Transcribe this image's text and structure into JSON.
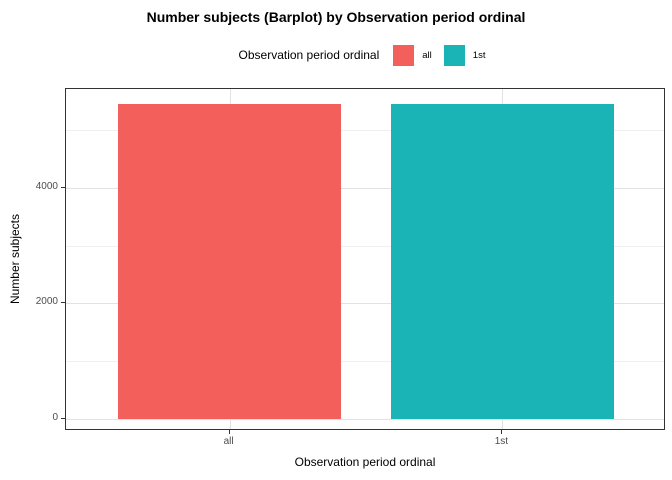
{
  "chart_data": {
    "type": "bar",
    "title": "Number subjects (Barplot) by Observation period ordinal",
    "legend_title": "Observation period ordinal",
    "legend_position": "top",
    "xlabel": "Observation period ordinal",
    "ylabel": "Number subjects",
    "categories": [
      "all",
      "1st"
    ],
    "values": [
      5460,
      5460
    ],
    "bar_colors": [
      "#F3605C",
      "#1AB4B7"
    ],
    "legend": [
      {
        "label": "all",
        "color": "#F3605C"
      },
      {
        "label": "1st",
        "color": "#1AB4B7"
      }
    ],
    "yticks": [
      0,
      2000,
      4000
    ],
    "y_minor_ticks": [
      1000,
      3000,
      5000
    ],
    "ylim": [
      -210,
      5715
    ],
    "grid": true
  },
  "style": {
    "bar_red": "#F3605C",
    "bar_teal": "#1AB4B7",
    "grid_major": "#E2E2E2",
    "grid_minor": "#F0F0F0",
    "panel_border": "#333333",
    "tick_label_color": "#4D4D4D",
    "text_color": "#000000",
    "background": "#FFFFFF"
  }
}
